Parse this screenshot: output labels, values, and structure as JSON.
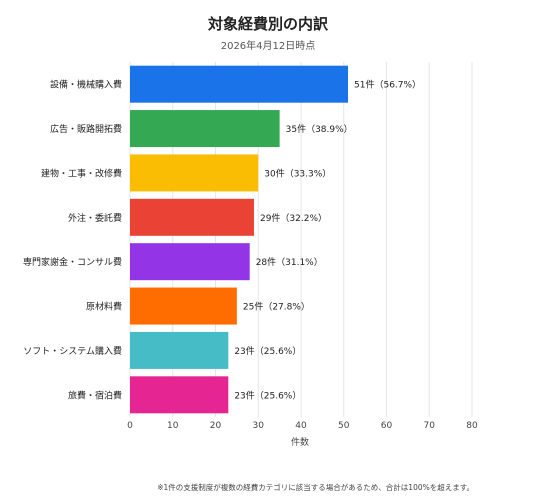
{
  "chart_data": {
    "type": "bar",
    "orientation": "horizontal",
    "title": "対象経費別の内訳",
    "subtitle": "2026年4月12日時点",
    "xlabel": "件数",
    "ylabel": "",
    "xlim": [
      0,
      80
    ],
    "xticks": [
      0,
      10,
      20,
      30,
      40,
      50,
      60,
      70,
      80
    ],
    "grid": true,
    "legend": "none",
    "categories": [
      "設備・機械購入費",
      "広告・販路開拓費",
      "建物・工事・改修費",
      "外注・委託費",
      "専門家謝金・コンサル費",
      "原材料費",
      "ソフト・システム購入費",
      "旅費・宿泊費"
    ],
    "values": [
      51,
      35,
      30,
      29,
      28,
      25,
      23,
      23
    ],
    "value_labels": [
      "51件（56.7%）",
      "35件（38.9%）",
      "30件（33.3%）",
      "29件（32.2%）",
      "28件（31.1%）",
      "25件（27.8%）",
      "23件（25.6%）",
      "23件（25.6%）"
    ],
    "colors": [
      "#1a73e8",
      "#34a853",
      "#fbbc04",
      "#ea4335",
      "#9334e6",
      "#ff6d01",
      "#46bdc6",
      "#e52592"
    ],
    "footnote": "※1件の支援制度が複数の経費カテゴリに該当する場合があるため、合計は100%を超えます。"
  }
}
